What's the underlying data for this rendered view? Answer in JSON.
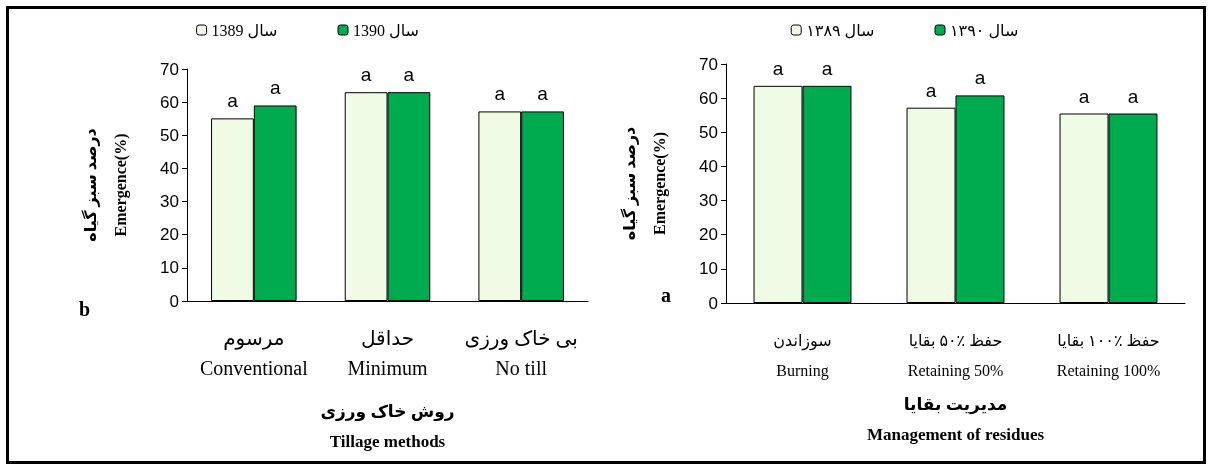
{
  "chart_data": [
    {
      "type": "bar",
      "categories": [
        "مرسوم\nConventional",
        "حداقل\nMinimum",
        "بی خاک ورزی\nNo till"
      ],
      "series": [
        {
          "name": "سال 1389",
          "color": "#effbe4",
          "values": [
            55.1,
            63.0,
            57.2
          ],
          "value_labels": [
            "a",
            "a",
            "a"
          ]
        },
        {
          "name": "سال 1390",
          "color": "#00aa4e",
          "values": [
            59.0,
            63.0,
            57.2
          ],
          "value_labels": [
            "a",
            "a",
            "a"
          ]
        }
      ],
      "xlabel": "روش خاک ورزی\nTillage methods",
      "ylabel": "درصد سبز گیاه\nEmergence(%)",
      "annotations": [
        "b"
      ],
      "ylim": [
        0,
        70
      ],
      "yticks": [
        0,
        10,
        20,
        30,
        40,
        50,
        60,
        70
      ],
      "grid": false,
      "legend": "top"
    },
    {
      "type": "bar",
      "categories": [
        "سوزاندن\nBurning",
        "حفظ ٪۵۰ بقایا\nRetaining 50%",
        "حفظ ٪۱۰۰ بقایا\nRetaining 100%"
      ],
      "series": [
        {
          "name": "سال ۱۳۸۹",
          "color": "#effbe4",
          "values": [
            63.6,
            57.2,
            55.5
          ],
          "value_labels": [
            "a",
            "a",
            "a"
          ]
        },
        {
          "name": "سال ۱۳۹۰",
          "color": "#00aa4e",
          "values": [
            63.6,
            60.8,
            55.5
          ],
          "value_labels": [
            "a",
            "a",
            "a"
          ]
        }
      ],
      "xlabel": "مدیریت بقایا\nManagement of residues",
      "ylabel": "درصد سبز گیاه\nEmergence(%)",
      "annotations": [
        "a"
      ],
      "ylim": [
        0,
        70
      ],
      "yticks": [
        0,
        10,
        20,
        30,
        40,
        50,
        60,
        70
      ],
      "grid": false,
      "legend": "top"
    }
  ]
}
